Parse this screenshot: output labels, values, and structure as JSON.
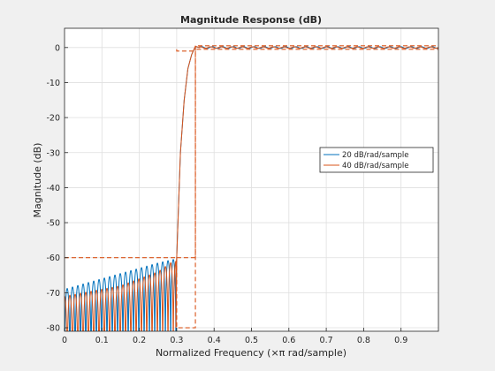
{
  "chart_data": {
    "type": "line",
    "title": "Magnitude Response (dB)",
    "xlabel": "Normalized Frequency  (×π rad/sample)",
    "ylabel": "Magnitude (dB)",
    "xlim": [
      0,
      1
    ],
    "ylim": [
      -81,
      5.5
    ],
    "x_ticks": [
      0,
      0.1,
      0.2,
      0.3,
      0.4,
      0.5,
      0.6,
      0.7,
      0.8,
      0.9
    ],
    "x_tick_labels": [
      "0",
      "0.1",
      "0.2",
      "0.3",
      "0.4",
      "0.5",
      "0.6",
      "0.7",
      "0.8",
      "0.9"
    ],
    "y_ticks": [
      0,
      -10,
      -20,
      -30,
      -40,
      -50,
      -60,
      -70,
      -80
    ],
    "y_tick_labels": [
      "0",
      "-10",
      "-20",
      "-30",
      "-40",
      "-50",
      "-60",
      "-70",
      "-80"
    ],
    "grid": true,
    "legend_position": "right",
    "series": [
      {
        "name": "20 dB/rad/sample",
        "color": "#0072bd",
        "style": "solid",
        "stopband_peak_envelope": [
          [
            0.0,
            -69
          ],
          [
            0.05,
            -67.5
          ],
          [
            0.1,
            -66
          ],
          [
            0.15,
            -64.5
          ],
          [
            0.2,
            -63
          ],
          [
            0.25,
            -61.5
          ],
          [
            0.29,
            -60.5
          ]
        ],
        "stopband_lobes": 21,
        "transition": [
          [
            0.298,
            -80
          ],
          [
            0.3,
            -60
          ],
          [
            0.31,
            -30
          ],
          [
            0.32,
            -15
          ],
          [
            0.33,
            -6
          ],
          [
            0.34,
            -2
          ],
          [
            0.35,
            0.3
          ],
          [
            0.36,
            0
          ]
        ],
        "passband_ripple_db": 0.5
      },
      {
        "name": "40 dB/rad/sample",
        "color": "#d95319",
        "style": "solid",
        "stopband_peak_envelope": [
          [
            0.0,
            -71
          ],
          [
            0.05,
            -70
          ],
          [
            0.1,
            -69
          ],
          [
            0.15,
            -68
          ],
          [
            0.2,
            -66
          ],
          [
            0.25,
            -64
          ],
          [
            0.29,
            -61
          ]
        ],
        "stopband_lobes": 21,
        "transition": [
          [
            0.298,
            -80
          ],
          [
            0.3,
            -60
          ],
          [
            0.31,
            -30
          ],
          [
            0.32,
            -15
          ],
          [
            0.33,
            -6
          ],
          [
            0.34,
            -2
          ],
          [
            0.35,
            0.4
          ],
          [
            0.36,
            0
          ]
        ],
        "passband_ripple_db": 0.4
      }
    ],
    "masks": {
      "color": "#d95319",
      "style": "dashed",
      "lower": [
        [
          0,
          -60
        ],
        [
          0.3,
          -60
        ],
        [
          0.3,
          -80
        ],
        [
          0.35,
          -80
        ],
        [
          0.35,
          -0.5
        ],
        [
          1,
          -0.5
        ]
      ],
      "upper": [
        [
          0.3,
          -0.5
        ],
        [
          0.3,
          -1
        ],
        [
          0.35,
          -1
        ],
        [
          0.35,
          0.5
        ],
        [
          1,
          0.5
        ]
      ],
      "stop_limit": [
        [
          0.3,
          -60
        ],
        [
          0.35,
          -60
        ],
        [
          0.35,
          0.5
        ]
      ]
    }
  }
}
